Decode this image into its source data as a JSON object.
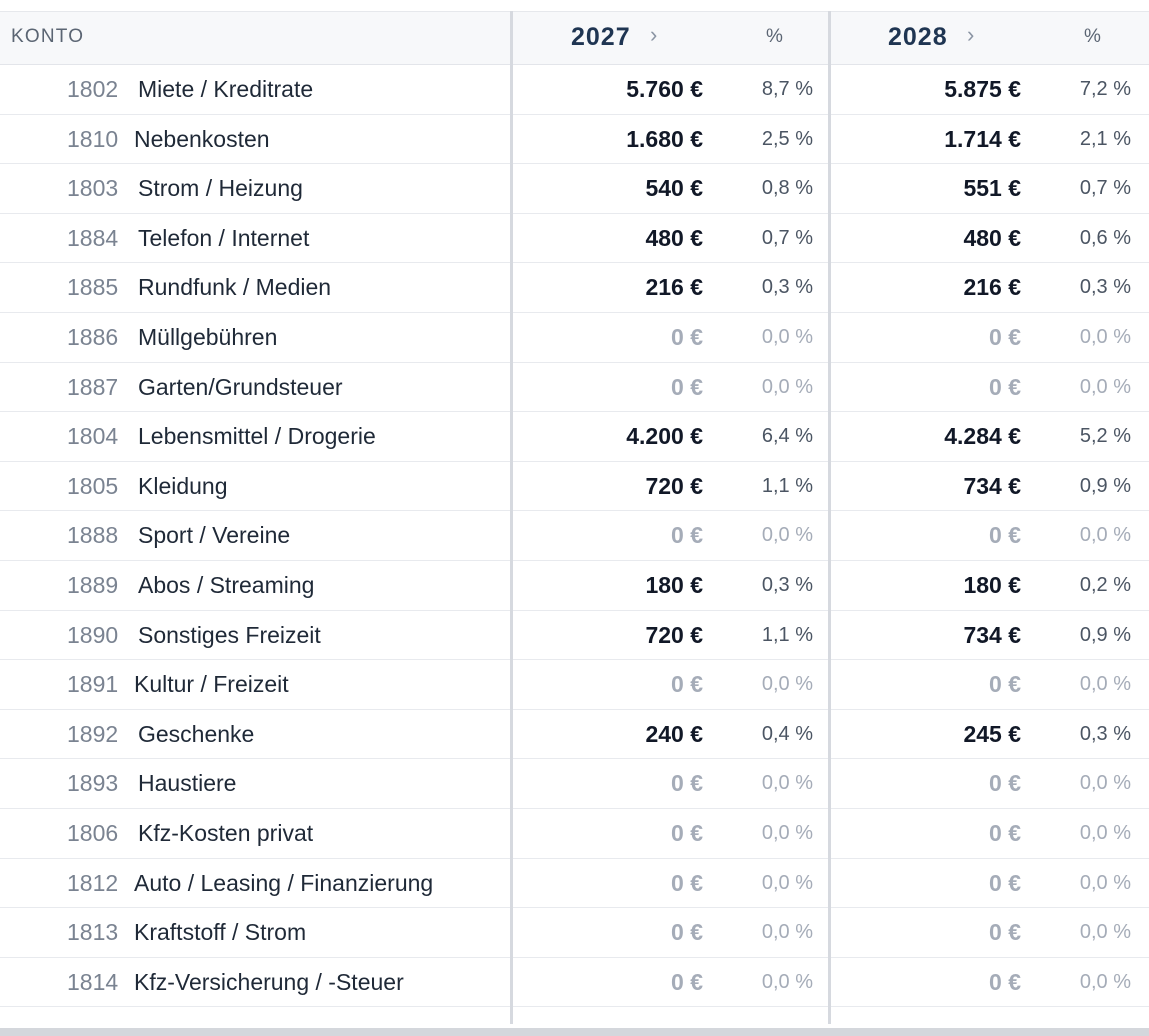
{
  "header": {
    "konto_label": "KONTO",
    "years": [
      {
        "label": "2027",
        "pct_label": "%"
      },
      {
        "label": "2028",
        "pct_label": "%"
      }
    ],
    "chevron": "›"
  },
  "rows": [
    {
      "num": "1802",
      "name": "Miete / Kreditrate",
      "y1_value": "5.760 €",
      "y1_pct": "8,7 %",
      "y2_value": "5.875 €",
      "y2_pct": "7,2 %",
      "zero": false
    },
    {
      "num": "1810",
      "name": "Nebenkosten",
      "y1_value": "1.680 €",
      "y1_pct": "2,5 %",
      "y2_value": "1.714 €",
      "y2_pct": "2,1 %",
      "zero": false
    },
    {
      "num": "1803",
      "name": "Strom / Heizung",
      "y1_value": "540 €",
      "y1_pct": "0,8 %",
      "y2_value": "551 €",
      "y2_pct": "0,7 %",
      "zero": false
    },
    {
      "num": "1884",
      "name": "Telefon / Internet",
      "y1_value": "480 €",
      "y1_pct": "0,7 %",
      "y2_value": "480 €",
      "y2_pct": "0,6 %",
      "zero": false
    },
    {
      "num": "1885",
      "name": "Rundfunk / Medien",
      "y1_value": "216 €",
      "y1_pct": "0,3 %",
      "y2_value": "216 €",
      "y2_pct": "0,3 %",
      "zero": false
    },
    {
      "num": "1886",
      "name": "Müllgebühren",
      "y1_value": "0 €",
      "y1_pct": "0,0 %",
      "y2_value": "0 €",
      "y2_pct": "0,0 %",
      "zero": true
    },
    {
      "num": "1887",
      "name": "Garten/Grundsteuer",
      "y1_value": "0 €",
      "y1_pct": "0,0 %",
      "y2_value": "0 €",
      "y2_pct": "0,0 %",
      "zero": true
    },
    {
      "num": "1804",
      "name": "Lebensmittel / Drogerie",
      "y1_value": "4.200 €",
      "y1_pct": "6,4 %",
      "y2_value": "4.284 €",
      "y2_pct": "5,2 %",
      "zero": false
    },
    {
      "num": "1805",
      "name": "Kleidung",
      "y1_value": "720 €",
      "y1_pct": "1,1 %",
      "y2_value": "734 €",
      "y2_pct": "0,9 %",
      "zero": false
    },
    {
      "num": "1888",
      "name": "Sport / Vereine",
      "y1_value": "0 €",
      "y1_pct": "0,0 %",
      "y2_value": "0 €",
      "y2_pct": "0,0 %",
      "zero": true
    },
    {
      "num": "1889",
      "name": "Abos / Streaming",
      "y1_value": "180 €",
      "y1_pct": "0,3 %",
      "y2_value": "180 €",
      "y2_pct": "0,2 %",
      "zero": false
    },
    {
      "num": "1890",
      "name": "Sonstiges Freizeit",
      "y1_value": "720 €",
      "y1_pct": "1,1 %",
      "y2_value": "734 €",
      "y2_pct": "0,9 %",
      "zero": false
    },
    {
      "num": "1891",
      "name": "Kultur / Freizeit",
      "y1_value": "0 €",
      "y1_pct": "0,0 %",
      "y2_value": "0 €",
      "y2_pct": "0,0 %",
      "zero": true
    },
    {
      "num": "1892",
      "name": "Geschenke",
      "y1_value": "240 €",
      "y1_pct": "0,4 %",
      "y2_value": "245 €",
      "y2_pct": "0,3 %",
      "zero": false
    },
    {
      "num": "1893",
      "name": "Haustiere",
      "y1_value": "0 €",
      "y1_pct": "0,0 %",
      "y2_value": "0 €",
      "y2_pct": "0,0 %",
      "zero": true
    },
    {
      "num": "1806",
      "name": "Kfz-Kosten privat",
      "y1_value": "0 €",
      "y1_pct": "0,0 %",
      "y2_value": "0 €",
      "y2_pct": "0,0 %",
      "zero": true
    },
    {
      "num": "1812",
      "name": "Auto / Leasing / Finanzierung",
      "y1_value": "0 €",
      "y1_pct": "0,0 %",
      "y2_value": "0 €",
      "y2_pct": "0,0 %",
      "zero": true
    },
    {
      "num": "1813",
      "name": "Kraftstoff / Strom",
      "y1_value": "0 €",
      "y1_pct": "0,0 %",
      "y2_value": "0 €",
      "y2_pct": "0,0 %",
      "zero": true
    },
    {
      "num": "1814",
      "name": "Kfz-Versicherung / -Steuer",
      "y1_value": "0 €",
      "y1_pct": "0,0 %",
      "y2_value": "0 €",
      "y2_pct": "0,0 %",
      "zero": true
    }
  ]
}
